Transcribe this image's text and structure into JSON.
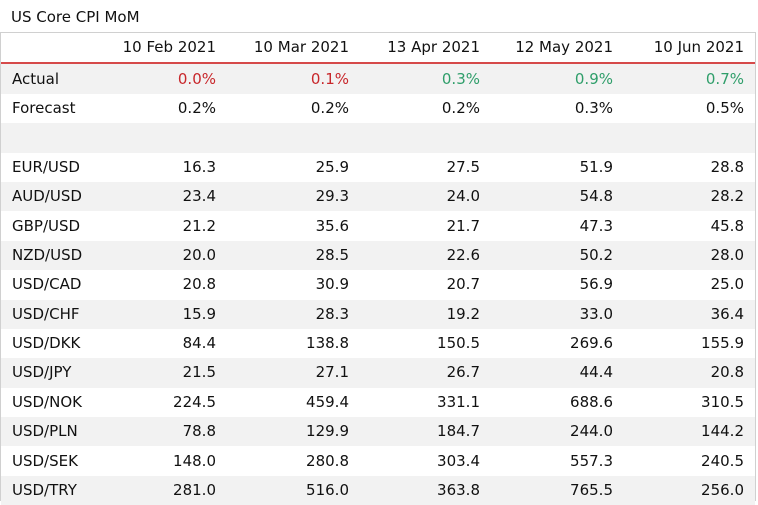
{
  "title": "US Core CPI MoM",
  "headers": [
    "",
    "10 Feb 2021",
    "10 Mar 2021",
    "13 Apr 2021",
    "12 May 2021",
    "10 Jun 2021"
  ],
  "actual": {
    "label": "Actual",
    "values": [
      "0.0%",
      "0.1%",
      "0.3%",
      "0.9%",
      "0.7%"
    ],
    "colors": [
      "neg",
      "neg",
      "pos",
      "pos",
      "pos"
    ]
  },
  "forecast": {
    "label": "Forecast",
    "values": [
      "0.2%",
      "0.2%",
      "0.2%",
      "0.3%",
      "0.5%"
    ]
  },
  "pairs": [
    {
      "label": "EUR/USD",
      "values": [
        "16.3",
        "25.9",
        "27.5",
        "51.9",
        "28.8"
      ]
    },
    {
      "label": "AUD/USD",
      "values": [
        "23.4",
        "29.3",
        "24.0",
        "54.8",
        "28.2"
      ]
    },
    {
      "label": "GBP/USD",
      "values": [
        "21.2",
        "35.6",
        "21.7",
        "47.3",
        "45.8"
      ]
    },
    {
      "label": "NZD/USD",
      "values": [
        "20.0",
        "28.5",
        "22.6",
        "50.2",
        "28.0"
      ]
    },
    {
      "label": "USD/CAD",
      "values": [
        "20.8",
        "30.9",
        "20.7",
        "56.9",
        "25.0"
      ]
    },
    {
      "label": "USD/CHF",
      "values": [
        "15.9",
        "28.3",
        "19.2",
        "33.0",
        "36.4"
      ]
    },
    {
      "label": "USD/DKK",
      "values": [
        "84.4",
        "138.8",
        "150.5",
        "269.6",
        "155.9"
      ]
    },
    {
      "label": "USD/JPY",
      "values": [
        "21.5",
        "27.1",
        "26.7",
        "44.4",
        "20.8"
      ]
    },
    {
      "label": "USD/NOK",
      "values": [
        "224.5",
        "459.4",
        "331.1",
        "688.6",
        "310.5"
      ]
    },
    {
      "label": "USD/PLN",
      "values": [
        "78.8",
        "129.9",
        "184.7",
        "244.0",
        "144.2"
      ]
    },
    {
      "label": "USD/SEK",
      "values": [
        "148.0",
        "280.8",
        "303.4",
        "557.3",
        "240.5"
      ]
    },
    {
      "label": "USD/TRY",
      "values": [
        "281.0",
        "516.0",
        "363.8",
        "765.5",
        "256.0"
      ]
    }
  ],
  "colors": {
    "negative": "#c8272b",
    "positive": "#2f9e6a",
    "header_rule": "#d64a4a",
    "stripe": "#f2f2f2"
  }
}
